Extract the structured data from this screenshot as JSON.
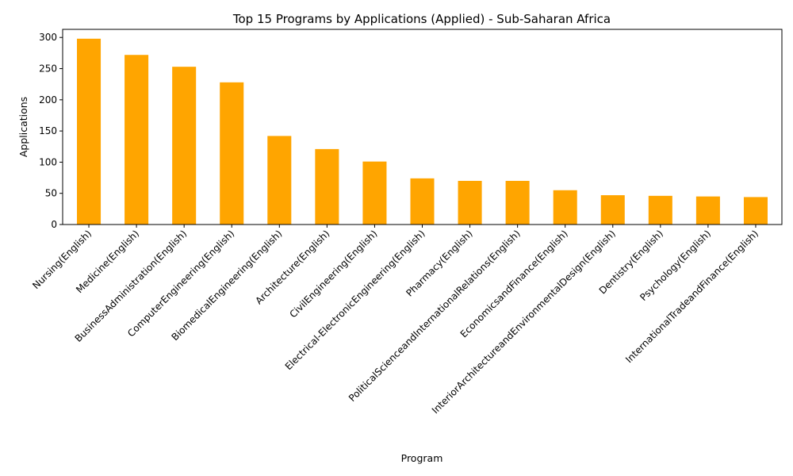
{
  "chart_data": {
    "type": "bar",
    "title": "Top 15 Programs by Applications (Applied) - Sub-Saharan Africa",
    "xlabel": "Program",
    "ylabel": "Applications",
    "ylim": [
      0,
      313
    ],
    "yticks": [
      0,
      50,
      100,
      150,
      200,
      250,
      300
    ],
    "bar_color": "#ffa500",
    "grid": false,
    "legend": "none",
    "categories": [
      "Nursing(English)",
      "Medicine(English)",
      "BusinessAdministration(English)",
      "ComputerEngineering(English)",
      "BiomedicalEngineering(English)",
      "Architecture(English)",
      "CivilEngineering(English)",
      "Electrical-ElectronicEngineering(English)",
      "Pharmacy(English)",
      "PoliticalScienceandInternationalRelations(English)",
      "EconomicsandFinance(English)",
      "InteriorArchitectureandEnvironmentalDesign(English)",
      "Dentistry(English)",
      "Psychology(English)",
      "InternationalTradeandFinance(English)"
    ],
    "values": [
      298,
      272,
      253,
      228,
      142,
      121,
      101,
      74,
      70,
      70,
      55,
      47,
      46,
      45,
      44
    ]
  }
}
